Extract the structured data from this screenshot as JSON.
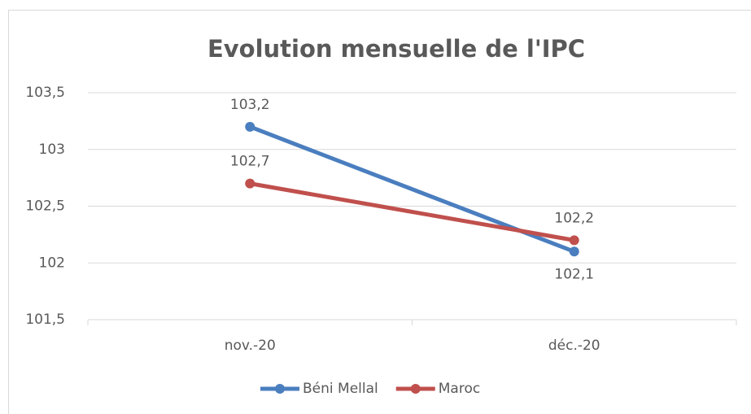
{
  "chart_data": {
    "type": "line",
    "title": "Evolution mensuelle de l'IPC",
    "categories": [
      "nov.-20",
      "déc.-20"
    ],
    "series": [
      {
        "name": "Béni Mellal",
        "color": "#4a7ebf",
        "values": [
          103.2,
          102.1
        ],
        "value_labels": [
          "103,2",
          "102,1"
        ]
      },
      {
        "name": "Maroc",
        "color": "#c0504d",
        "values": [
          102.7,
          102.2
        ],
        "value_labels": [
          "102,7",
          "102,2"
        ]
      }
    ],
    "ylim": [
      101.5,
      103.5
    ],
    "yticks": [
      {
        "value": 101.5,
        "label": "101,5"
      },
      102,
      {
        "value": 102.5,
        "label": "102,5"
      },
      103,
      {
        "value": 103.5,
        "label": "103,5"
      }
    ],
    "grid": true,
    "legend": "bottom"
  }
}
